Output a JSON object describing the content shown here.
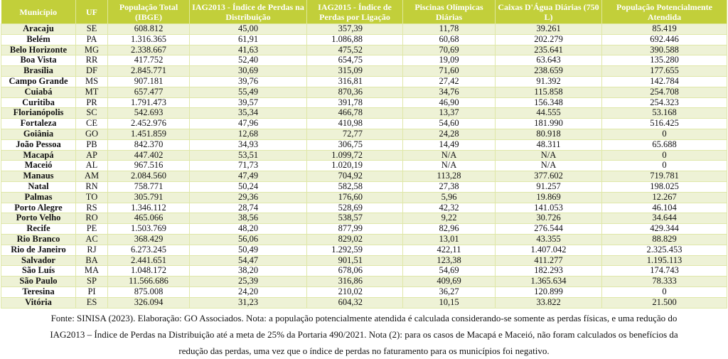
{
  "colors": {
    "header_bg": "#c2cf3a",
    "stripe": "#eef2d6",
    "border": "#dfe7a8"
  },
  "table": {
    "headers": [
      "Município",
      "UF",
      "População Total (IBGE)",
      "IAG2013 - Índice de Perdas na Distribuição",
      "IAG2015 - Índice de Perdas por Ligação",
      "Piscinas Olímpicas Diárias",
      "Caixas D'Água Diárias (750 L)",
      "População Potencialmente Atendida"
    ],
    "rows": [
      [
        "Aracaju",
        "SE",
        "608.812",
        "45,00",
        "357,39",
        "11,78",
        "39.261",
        "85.419"
      ],
      [
        "Belém",
        "PA",
        "1.316.365",
        "61,91",
        "1.086,88",
        "60,68",
        "202.279",
        "692.446"
      ],
      [
        "Belo Horizonte",
        "MG",
        "2.338.667",
        "41,63",
        "475,52",
        "70,69",
        "235.641",
        "390.588"
      ],
      [
        "Boa Vista",
        "RR",
        "417.752",
        "52,40",
        "654,75",
        "19,09",
        "63.643",
        "135.280"
      ],
      [
        "Brasília",
        "DF",
        "2.845.771",
        "30,69",
        "315,09",
        "71,60",
        "238.659",
        "177.655"
      ],
      [
        "Campo Grande",
        "MS",
        "907.181",
        "39,76",
        "316,81",
        "27,42",
        "91.392",
        "142.784"
      ],
      [
        "Cuiabá",
        "MT",
        "657.477",
        "55,49",
        "870,36",
        "34,76",
        "115.858",
        "254.708"
      ],
      [
        "Curitiba",
        "PR",
        "1.791.473",
        "39,57",
        "391,78",
        "46,90",
        "156.348",
        "254.323"
      ],
      [
        "Florianópolis",
        "SC",
        "542.693",
        "35,34",
        "466,78",
        "13,37",
        "44.555",
        "53.168"
      ],
      [
        "Fortaleza",
        "CE",
        "2.452.976",
        "47,96",
        "410,98",
        "54,60",
        "181.990",
        "516.425"
      ],
      [
        "Goiânia",
        "GO",
        "1.451.859",
        "12,68",
        "72,77",
        "24,28",
        "80.918",
        "0"
      ],
      [
        "João Pessoa",
        "PB",
        "842.370",
        "34,93",
        "306,75",
        "14,49",
        "48.311",
        "65.688"
      ],
      [
        "Macapá",
        "AP",
        "447.402",
        "53,51",
        "1.099,72",
        "N/A",
        "N/A",
        "0"
      ],
      [
        "Maceió",
        "AL",
        "967.516",
        "71,73",
        "1.020,19",
        "N/A",
        "N/A",
        "0"
      ],
      [
        "Manaus",
        "AM",
        "2.084.560",
        "47,49",
        "704,92",
        "113,28",
        "377.602",
        "719.781"
      ],
      [
        "Natal",
        "RN",
        "758.771",
        "50,24",
        "582,58",
        "27,38",
        "91.257",
        "198.025"
      ],
      [
        "Palmas",
        "TO",
        "305.791",
        "29,36",
        "176,60",
        "5,96",
        "19.869",
        "12.267"
      ],
      [
        "Porto Alegre",
        "RS",
        "1.346.112",
        "28,74",
        "528,69",
        "42,32",
        "141.053",
        "46.104"
      ],
      [
        "Porto Velho",
        "RO",
        "465.066",
        "38,56",
        "538,57",
        "9,22",
        "30.726",
        "34.644"
      ],
      [
        "Recife",
        "PE",
        "1.503.769",
        "48,20",
        "877,99",
        "82,96",
        "276.544",
        "429.344"
      ],
      [
        "Rio Branco",
        "AC",
        "368.429",
        "56,06",
        "829,02",
        "13,01",
        "43.355",
        "88.829"
      ],
      [
        "Rio de Janeiro",
        "RJ",
        "6.273.245",
        "50,49",
        "1.292,59",
        "422,11",
        "1.407.042",
        "2.325.453"
      ],
      [
        "Salvador",
        "BA",
        "2.441.651",
        "54,47",
        "901,51",
        "123,38",
        "411.277",
        "1.195.113"
      ],
      [
        "São Luís",
        "MA",
        "1.048.172",
        "38,20",
        "678,06",
        "54,69",
        "182.293",
        "174.743"
      ],
      [
        "São Paulo",
        "SP",
        "11.566.686",
        "25,39",
        "316,86",
        "409,69",
        "1.365.634",
        "78.333"
      ],
      [
        "Teresina",
        "PI",
        "875.008",
        "24,20",
        "210,02",
        "36,27",
        "120.899",
        "0"
      ],
      [
        "Vitória",
        "ES",
        "326.094",
        "31,23",
        "604,32",
        "10,15",
        "33.822",
        "21.500"
      ]
    ]
  },
  "caption": [
    "Fonte: SINISA (2023). Elaboração: GO Associados. Nota: a população potencialmente atendida é calculada considerando-se somente as perdas físicas, e uma redução do",
    "IAG2013 – Índice de Perdas na Distribuição até a meta de 25% da Portaria 490/2021. Nota (2): para os casos de Macapá e Maceió, não foram calculados os benefícios da",
    "redução das perdas, uma vez que o índice de perdas no faturamento para os municípios foi negativo."
  ]
}
